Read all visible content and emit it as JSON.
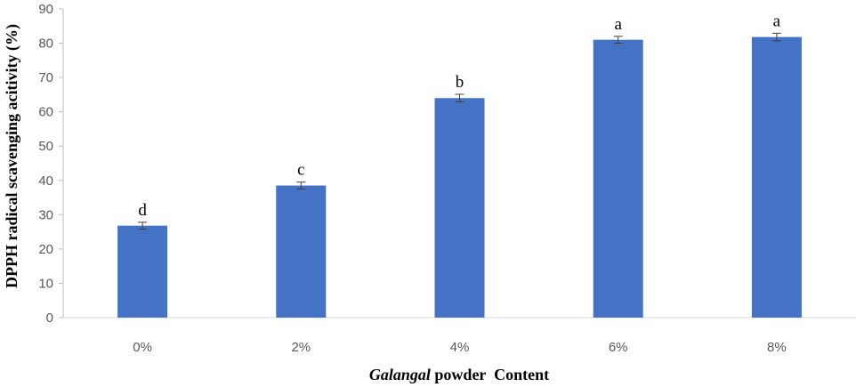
{
  "chart_data": {
    "type": "bar",
    "categories": [
      "0%",
      "2%",
      "4%",
      "6%",
      "8%"
    ],
    "values": [
      26.8,
      38.5,
      64.0,
      81.0,
      81.8
    ],
    "errors": [
      1.0,
      1.0,
      1.1,
      1.0,
      1.1
    ],
    "significance_letters": [
      "d",
      "c",
      "b",
      "a",
      "a"
    ],
    "ylabel": "DPPH radical scavenging acitivity (%)",
    "xlabel_italic": "Galangal",
    "xlabel_rest": " powder  Content",
    "ylim": [
      0,
      90
    ],
    "yticks": [
      0,
      10,
      20,
      30,
      40,
      50,
      60,
      70,
      80,
      90
    ],
    "grid": false,
    "bar_color": "#4472C4",
    "error_color": "#404040"
  }
}
